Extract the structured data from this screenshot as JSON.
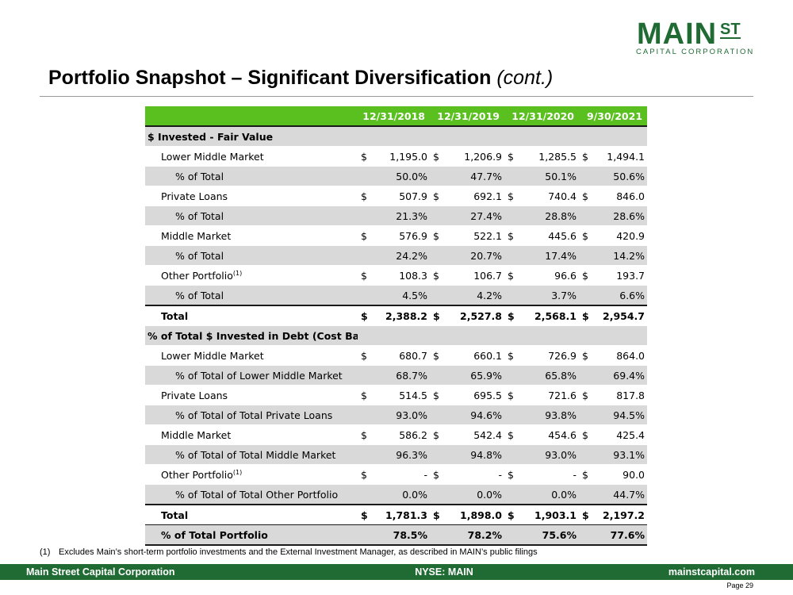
{
  "logo": {
    "main": "MAIN",
    "st": "ST",
    "sub": "CAPITAL CORPORATION"
  },
  "title": {
    "text": "Portfolio Snapshot – Significant Diversification ",
    "suffix": "(cont.)"
  },
  "table": {
    "headers": [
      "12/31/2018",
      "12/31/2019",
      "12/31/2020",
      "9/30/2021"
    ],
    "currency_symbol": "$",
    "rows": [
      {
        "type": "section",
        "label": "$ Invested - Fair Value"
      },
      {
        "type": "money",
        "indent": 1,
        "label": "Lower Middle Market",
        "values": [
          "1,195.0",
          "1,206.9",
          "1,285.5",
          "1,494.1"
        ]
      },
      {
        "type": "pct",
        "indent": 2,
        "shade": true,
        "label": "% of Total",
        "values": [
          "50.0%",
          "47.7%",
          "50.1%",
          "50.6%"
        ]
      },
      {
        "type": "money",
        "indent": 1,
        "label": "Private Loans",
        "values": [
          "507.9",
          "692.1",
          "740.4",
          "846.0"
        ]
      },
      {
        "type": "pct",
        "indent": 2,
        "shade": true,
        "label": "% of Total",
        "values": [
          "21.3%",
          "27.4%",
          "28.8%",
          "28.6%"
        ]
      },
      {
        "type": "money",
        "indent": 1,
        "label": "Middle Market",
        "values": [
          "576.9",
          "522.1",
          "445.6",
          "420.9"
        ]
      },
      {
        "type": "pct",
        "indent": 2,
        "shade": true,
        "label": "% of Total",
        "values": [
          "24.2%",
          "20.7%",
          "17.4%",
          "14.2%"
        ]
      },
      {
        "type": "money",
        "indent": 1,
        "label": "Other Portfolio",
        "footnote": "(1)",
        "values": [
          "108.3",
          "106.7",
          "96.6",
          "193.7"
        ]
      },
      {
        "type": "pct",
        "indent": 2,
        "shade": true,
        "label": "% of Total",
        "values": [
          "4.5%",
          "4.2%",
          "3.7%",
          "6.6%"
        ]
      },
      {
        "type": "money",
        "indent": 1,
        "total": true,
        "label": "Total",
        "values": [
          "2,388.2",
          "2,527.8",
          "2,568.1",
          "2,954.7"
        ]
      },
      {
        "type": "section",
        "label": "% of Total $ Invested in Debt (Cost Basis)"
      },
      {
        "type": "money",
        "indent": 1,
        "label": "Lower Middle Market",
        "values": [
          "680.7",
          "660.1",
          "726.9",
          "864.0"
        ]
      },
      {
        "type": "pct",
        "indent": 2,
        "shade": true,
        "label": "% of Total of Lower Middle Market",
        "values": [
          "68.7%",
          "65.9%",
          "65.8%",
          "69.4%"
        ]
      },
      {
        "type": "money",
        "indent": 1,
        "label": "Private Loans",
        "values": [
          "514.5",
          "695.5",
          "721.6",
          "817.8"
        ]
      },
      {
        "type": "pct",
        "indent": 2,
        "shade": true,
        "label": "% of Total of Total Private Loans",
        "values": [
          "93.0%",
          "94.6%",
          "93.8%",
          "94.5%"
        ]
      },
      {
        "type": "money",
        "indent": 1,
        "label": "Middle Market",
        "values": [
          "586.2",
          "542.4",
          "454.6",
          "425.4"
        ]
      },
      {
        "type": "pct",
        "indent": 2,
        "shade": true,
        "label": "% of Total of Total Middle Market",
        "values": [
          "96.3%",
          "94.8%",
          "93.0%",
          "93.1%"
        ]
      },
      {
        "type": "money",
        "indent": 1,
        "label": "Other Portfolio",
        "footnote": "(1)",
        "values": [
          "-",
          "-",
          "-",
          "90.0"
        ]
      },
      {
        "type": "pct",
        "indent": 2,
        "shade": true,
        "label": "% of Total of Total Other Portfolio",
        "values": [
          "0.0%",
          "0.0%",
          "0.0%",
          "44.7%"
        ]
      },
      {
        "type": "money",
        "indent": 1,
        "total": true,
        "label": "Total",
        "values": [
          "1,781.3",
          "1,898.0",
          "1,903.1",
          "2,197.2"
        ]
      },
      {
        "type": "pct",
        "indent": 1,
        "final": true,
        "label": "% of Total Portfolio",
        "values": [
          "78.5%",
          "78.2%",
          "75.6%",
          "77.6%"
        ]
      }
    ]
  },
  "footnote": {
    "mark": "(1)",
    "text": "Excludes Main’s short-term portfolio investments and the External Investment Manager, as described in MAIN’s public filings"
  },
  "footer": {
    "left": "Main Street Capital Corporation",
    "center": "NYSE: MAIN",
    "right": "mainstcapital.com"
  },
  "page": {
    "label": "Page  29"
  },
  "colors": {
    "brand_green": "#1f6b33",
    "header_green": "#5ac01f",
    "row_shade": "#d9d9d9"
  }
}
